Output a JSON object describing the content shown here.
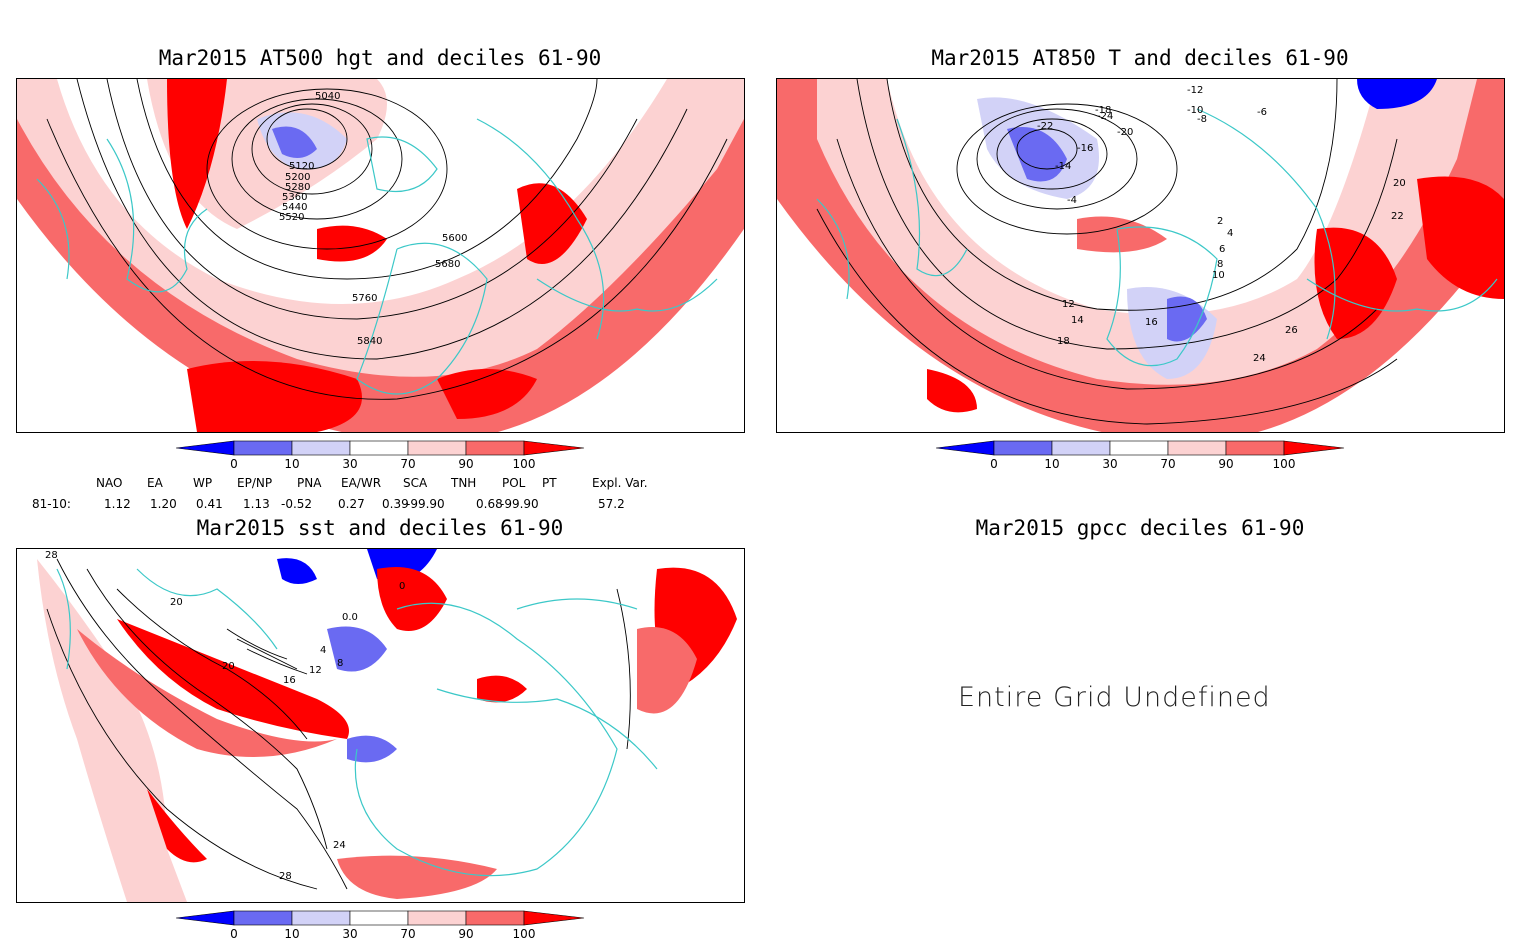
{
  "panels": {
    "hgt": {
      "title": "Mar2015 AT500 hgt and deciles 61-90",
      "contour_labels": [
        "5040",
        "5120",
        "5200",
        "5280",
        "5360",
        "5440",
        "5520",
        "5600",
        "5680",
        "5760",
        "5840"
      ]
    },
    "t850": {
      "title": "Mar2015 AT850 T and deciles 61-90",
      "contour_labels": [
        "-22",
        "-18",
        "-24",
        "-20",
        "-16",
        "-14",
        "-12",
        "-10",
        "-8",
        "-6",
        "-4",
        "2",
        "4",
        "6",
        "8",
        "10",
        "12",
        "14",
        "16",
        "18",
        "20",
        "22",
        "24",
        "26"
      ]
    },
    "sst": {
      "title": "Mar2015 sst and deciles 61-90",
      "contour_labels": [
        "28",
        "20",
        "0.0",
        "4",
        "8",
        "12",
        "16",
        "20",
        "24",
        "28",
        "0"
      ]
    },
    "gpcc": {
      "title": "Mar2015 gpcc deciles 61-90",
      "message": "Entire Grid Undefined"
    }
  },
  "colorbar": {
    "labels": [
      "0",
      "10",
      "30",
      "70",
      "90",
      "100"
    ],
    "colors": [
      "#0000ff",
      "#6a6af2",
      "#d2d2f7",
      "#ffffff",
      "#fcd2d2",
      "#f86a6a",
      "#ff0000"
    ]
  },
  "indices": {
    "headers": [
      "NAO",
      "EA",
      "WP",
      "EP/NP",
      "PNA",
      "EA/WR",
      "SCA",
      "TNH",
      "POL",
      "PT",
      "Expl. Var."
    ],
    "row_label": "81-10:",
    "values": [
      "1.12",
      "1.20",
      "0.41",
      "1.13",
      "-0.52",
      "0.27",
      "0.39",
      "-99.90",
      "0.68",
      "-99.90",
      "57.2"
    ]
  },
  "map_colors": {
    "land": "#3cc8c8",
    "high": "#ff0000",
    "mid_high": "#f86a6a",
    "low_high": "#fcd2d2",
    "low": "#d2d2f7",
    "mid_low": "#6a6af2",
    "very_low": "#0000ff"
  }
}
